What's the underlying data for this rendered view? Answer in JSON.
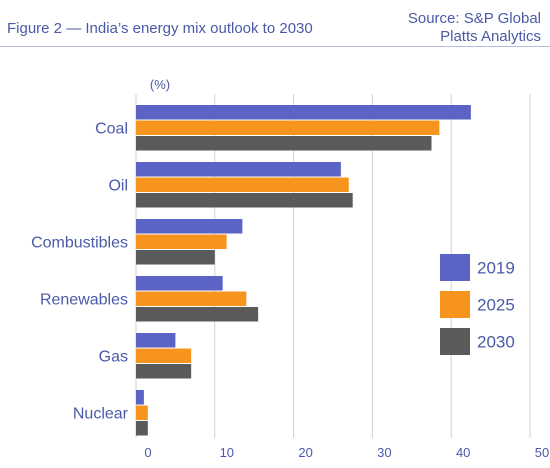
{
  "header": {
    "title": "Figure 2 — India’s energy mix outlook to 2030",
    "source_line1": "Source: S&P Global",
    "source_line2": "Platts Analytics"
  },
  "chart_data": {
    "type": "bar",
    "orientation": "horizontal",
    "unit_label": "(%)",
    "categories": [
      "Coal",
      "Oil",
      "Combustibles",
      "Renewables",
      "Gas",
      "Nuclear"
    ],
    "series": [
      {
        "name": "2019",
        "color": "#5b63c4",
        "values": [
          42.5,
          26.0,
          13.5,
          11.0,
          5.0,
          1.0
        ]
      },
      {
        "name": "2025",
        "color": "#f7941d",
        "values": [
          38.5,
          27.0,
          11.5,
          14.0,
          7.0,
          1.5
        ]
      },
      {
        "name": "2030",
        "color": "#5a5a5a",
        "values": [
          37.5,
          27.5,
          10.0,
          15.5,
          7.0,
          1.5
        ]
      }
    ],
    "xlim": [
      0,
      50
    ],
    "xticks": [
      0,
      10,
      20,
      30,
      40,
      50
    ],
    "grid": true,
    "legend_position": "right"
  }
}
